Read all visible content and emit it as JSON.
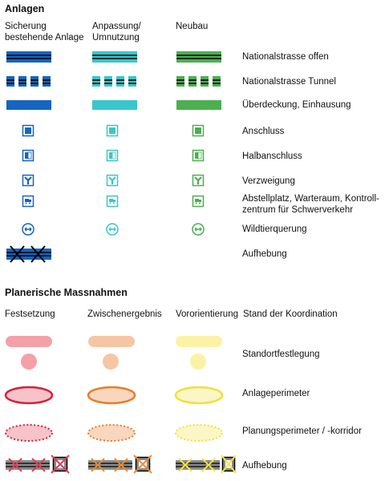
{
  "colors": {
    "blue": "#1565c0",
    "cyan": "#39c6cc",
    "green": "#4caf50",
    "red": "#e53950",
    "orange": "#f08a2c",
    "yellow": "#f4e83a",
    "black": "#111111"
  },
  "anlagen": {
    "title": "Anlagen",
    "columns": [
      {
        "line1": "Sicherung",
        "line2": "bestehende Anlage"
      },
      {
        "line1": "Anpassung/",
        "line2": "Umnutzung"
      },
      {
        "line1": "Neubau",
        "line2": ""
      }
    ],
    "rows": [
      {
        "label": "Nationalstrasse offen",
        "label2": ""
      },
      {
        "label": "Nationalstrasse Tunnel",
        "label2": ""
      },
      {
        "label": "Überdeckung, Einhausung",
        "label2": ""
      },
      {
        "label": "Anschluss",
        "label2": ""
      },
      {
        "label": "Halbanschluss",
        "label2": ""
      },
      {
        "label": "Verzweigung",
        "label2": ""
      },
      {
        "label": "Abstellplatz, Warteraum, Kontroll-",
        "label2": "zentrum für Schwerverkehr"
      },
      {
        "label": "Wildtierquerung",
        "label2": ""
      },
      {
        "label": "Aufhebung",
        "label2": ""
      }
    ]
  },
  "massnahmen": {
    "title": "Planerische Massnahmen",
    "columns": [
      "Festsetzung",
      "Zwischenergebnis",
      "Vororientierung",
      "Stand der Koordination"
    ],
    "rows": [
      {
        "label": "Standortfestlegung"
      },
      {
        "label": "Anlageperimeter"
      },
      {
        "label": "Planungsperimeter / -korridor"
      },
      {
        "label": "Aufhebung"
      }
    ]
  }
}
